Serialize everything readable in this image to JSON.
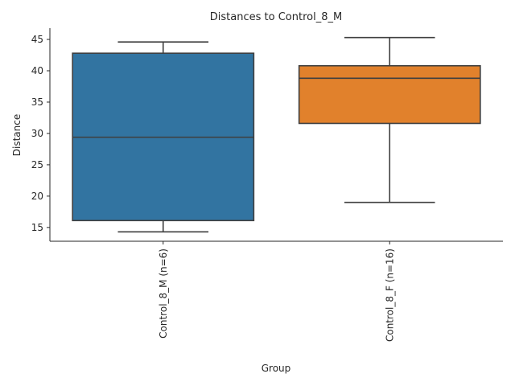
{
  "chart_data": {
    "type": "box",
    "title": "Distances to Control_8_M",
    "xlabel": "Group",
    "ylabel": "Distance",
    "ylim": [
      12.8,
      46.8
    ],
    "yticks": [
      15,
      20,
      25,
      30,
      35,
      40,
      45
    ],
    "grid": false,
    "categories": [
      "Control_8_M (n=6)",
      "Control_8_F (n=16)"
    ],
    "boxes": [
      {
        "category": "Control_8_M (n=6)",
        "whisker_low": 14.3,
        "q1": 16.1,
        "median": 29.4,
        "q3": 42.8,
        "whisker_high": 44.6,
        "color": "#3274a1"
      },
      {
        "category": "Control_8_F (n=16)",
        "whisker_low": 19.0,
        "q1": 31.6,
        "median": 38.8,
        "q3": 40.8,
        "whisker_high": 45.3,
        "color": "#e1812c"
      }
    ]
  }
}
